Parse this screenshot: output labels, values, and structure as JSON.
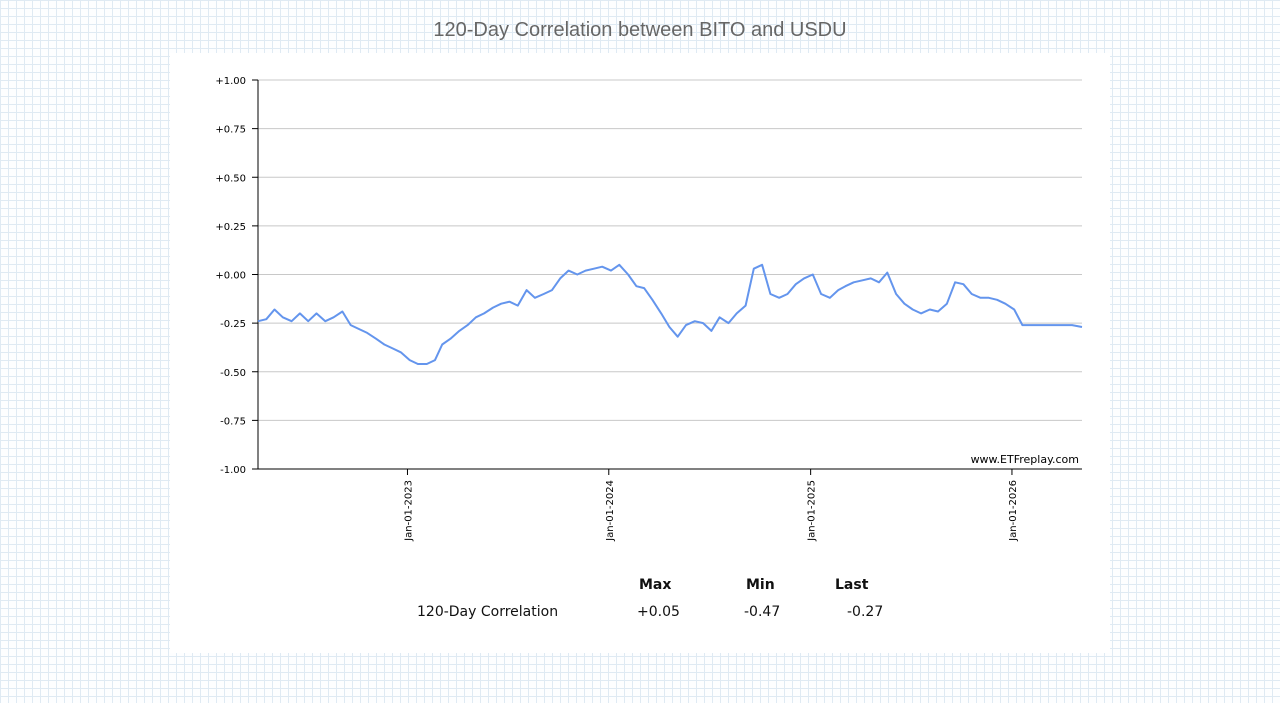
{
  "title": "120-Day Correlation between BITO and USDU",
  "watermark": "www.ETFreplay.com",
  "colors": {
    "line": "#6495ed",
    "grid": "#c8c8c8",
    "axis": "#000000"
  },
  "chart_data": {
    "type": "line",
    "title": "120-Day Correlation between BITO and USDU",
    "xlabel": "",
    "ylabel": "",
    "ylim": [
      -1.0,
      1.0
    ],
    "yticks": [
      1.0,
      0.75,
      0.5,
      0.25,
      0.0,
      -0.25,
      -0.5,
      -0.75,
      -1.0
    ],
    "ytick_labels": [
      "+1.00",
      "+0.75",
      "+0.50",
      "+0.25",
      "+0.00",
      "-0.25",
      "-0.50",
      "-0.75",
      "-1.00"
    ],
    "xlim": [
      "2022-04-05",
      "2026-05-08"
    ],
    "xticks": [
      "2023-01-01",
      "2024-01-01",
      "2025-01-01",
      "2026-01-01"
    ],
    "xtick_labels": [
      "Jan-01-2023",
      "Jan-01-2024",
      "Jan-01-2025",
      "Jan-01-2026"
    ],
    "grid": true,
    "series": [
      {
        "name": "120-Day Correlation",
        "x": [
          "2022-04-05",
          "2022-04-20",
          "2022-05-05",
          "2022-05-20",
          "2022-06-05",
          "2022-06-20",
          "2022-07-05",
          "2022-07-20",
          "2022-08-05",
          "2022-08-20",
          "2022-09-05",
          "2022-09-20",
          "2022-10-05",
          "2022-10-20",
          "2022-11-05",
          "2022-11-20",
          "2022-12-05",
          "2022-12-20",
          "2023-01-05",
          "2023-01-20",
          "2023-02-05",
          "2023-02-20",
          "2023-03-05",
          "2023-03-20",
          "2023-04-05",
          "2023-04-20",
          "2023-05-05",
          "2023-05-20",
          "2023-06-05",
          "2023-06-20",
          "2023-07-05",
          "2023-07-20",
          "2023-08-05",
          "2023-08-20",
          "2023-09-05",
          "2023-09-20",
          "2023-10-05",
          "2023-10-20",
          "2023-11-05",
          "2023-11-20",
          "2023-12-05",
          "2023-12-20",
          "2024-01-05",
          "2024-01-20",
          "2024-02-05",
          "2024-02-20",
          "2024-03-05",
          "2024-03-20",
          "2024-04-05",
          "2024-04-20",
          "2024-05-05",
          "2024-05-20",
          "2024-06-05",
          "2024-06-20",
          "2024-07-05",
          "2024-07-20",
          "2024-08-05",
          "2024-08-20",
          "2024-09-05",
          "2024-09-20",
          "2024-10-05",
          "2024-10-20",
          "2024-11-05",
          "2024-11-20",
          "2024-12-05",
          "2024-12-20",
          "2025-01-05",
          "2025-01-20",
          "2025-02-05",
          "2025-02-20",
          "2025-03-05",
          "2025-03-20",
          "2025-04-05",
          "2025-04-20",
          "2025-05-05",
          "2025-05-20",
          "2025-06-05",
          "2025-06-20",
          "2025-07-05",
          "2025-07-20",
          "2025-08-05",
          "2025-08-20",
          "2025-09-05",
          "2025-09-20",
          "2025-10-05",
          "2025-10-20",
          "2025-11-05",
          "2025-11-20",
          "2025-12-05",
          "2025-12-20",
          "2026-01-05",
          "2026-01-20",
          "2026-02-05",
          "2026-02-20",
          "2026-03-05",
          "2026-03-20",
          "2026-04-05",
          "2026-04-20",
          "2026-05-08"
        ],
        "values": [
          -0.24,
          -0.23,
          -0.18,
          -0.22,
          -0.24,
          -0.2,
          -0.24,
          -0.2,
          -0.24,
          -0.22,
          -0.19,
          -0.26,
          -0.28,
          -0.3,
          -0.33,
          -0.36,
          -0.38,
          -0.4,
          -0.44,
          -0.46,
          -0.46,
          -0.44,
          -0.36,
          -0.33,
          -0.29,
          -0.26,
          -0.22,
          -0.2,
          -0.17,
          -0.15,
          -0.14,
          -0.16,
          -0.08,
          -0.12,
          -0.1,
          -0.08,
          -0.02,
          0.02,
          0.0,
          0.02,
          0.03,
          0.04,
          0.02,
          0.05,
          0.0,
          -0.06,
          -0.07,
          -0.13,
          -0.2,
          -0.27,
          -0.32,
          -0.26,
          -0.24,
          -0.25,
          -0.29,
          -0.22,
          -0.25,
          -0.2,
          -0.16,
          0.03,
          0.05,
          -0.1,
          -0.12,
          -0.1,
          -0.05,
          -0.02,
          0.0,
          -0.1,
          -0.12,
          -0.08,
          -0.06,
          -0.04,
          -0.03,
          -0.02,
          -0.04,
          0.01,
          -0.1,
          -0.15,
          -0.18,
          -0.2,
          -0.18,
          -0.19,
          -0.15,
          -0.04,
          -0.05,
          -0.1,
          -0.12,
          -0.12,
          -0.13,
          -0.15,
          -0.18,
          -0.26,
          -0.26,
          -0.26,
          -0.26,
          -0.26,
          -0.26,
          -0.26,
          -0.27
        ]
      }
    ]
  },
  "stats": {
    "headers": [
      "Max",
      "Min",
      "Last"
    ],
    "row_label": "120-Day Correlation",
    "max": "+0.05",
    "min": "-0.47",
    "last": "-0.27"
  }
}
